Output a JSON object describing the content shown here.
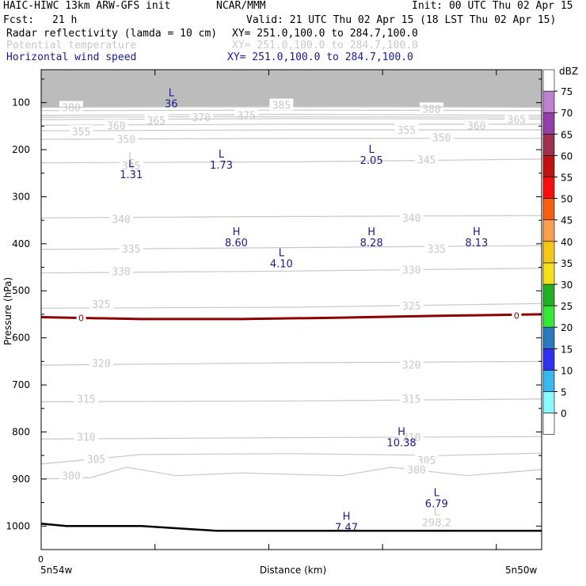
{
  "header": {
    "model": "HAIC-HIWC 13km ARW-GFS init",
    "org": "NCAR/MMM",
    "init": "Init: 00 UTC Thu 02 Apr 15",
    "fcst_label": "Fcst:",
    "fcst_value": "21 h",
    "valid": "Valid: 21 UTC Thu 02 Apr 15 (18 LST Thu 02 Apr 15)",
    "fields": [
      {
        "name": "Radar reflectivity (lamda = 10 cm)",
        "xy": "XY= 251.0,100.0 to 284.7,100.0",
        "color": "#000000"
      },
      {
        "name": "Potential temperature",
        "xy": "XY= 251.0,100.0 to 284.7,100.0",
        "color": "#c8c8c8"
      },
      {
        "name": "Horizontal wind speed",
        "xy": "XY= 251.0,100.0 to 284.7,100.0",
        "color": "#1a1a8c"
      }
    ]
  },
  "chart_data": {
    "type": "cross-section",
    "ylabel": "Pressure (hPa)",
    "xlabel": "Distance (km)",
    "y_ticks": [
      100,
      200,
      300,
      400,
      500,
      600,
      700,
      800,
      900,
      1000
    ],
    "y_range": [
      30,
      1050
    ],
    "y_scale": "linear",
    "x_tick_labels": [
      "0"
    ],
    "x_end_labels": [
      "5n54w",
      "5n50w"
    ],
    "x_range": [
      0,
      100
    ],
    "grid": false,
    "legend_position": "right",
    "colorbar": {
      "unit": "dBZ",
      "levels": [
        0,
        5,
        10,
        15,
        20,
        25,
        30,
        35,
        40,
        45,
        50,
        55,
        60,
        65,
        70,
        75
      ],
      "colors": [
        "#ffffff",
        "#8cf8ff",
        "#38b8f0",
        "#3030f0",
        "#2a7abf",
        "#38e838",
        "#22b022",
        "#f8e018",
        "#f8c818",
        "#f8a050",
        "#f86010",
        "#f81010",
        "#c01010",
        "#a03050",
        "#9040a8",
        "#c080d0",
        "#ffffff"
      ]
    },
    "theta_contours": [
      {
        "value": 380,
        "points": [
          [
            0,
            117
          ],
          [
            50,
            116
          ],
          [
            100,
            117
          ]
        ],
        "labels": [
          [
            6,
            110
          ],
          [
            78,
            113
          ]
        ]
      },
      {
        "value": 385,
        "points": [
          [
            0,
            110
          ],
          [
            50,
            108
          ],
          [
            100,
            110
          ]
        ],
        "labels": [
          [
            48,
            105
          ]
        ]
      },
      {
        "value": 375,
        "points": [
          [
            0,
            127
          ],
          [
            50,
            125
          ],
          [
            100,
            127
          ]
        ],
        "labels": [
          [
            41,
            127
          ]
        ]
      },
      {
        "value": 370,
        "points": [
          [
            0,
            131
          ],
          [
            35,
            130
          ],
          [
            100,
            131
          ]
        ],
        "labels": [
          [
            32,
            131
          ]
        ]
      },
      {
        "value": 365,
        "points": [
          [
            0,
            136
          ],
          [
            50,
            134
          ],
          [
            100,
            135
          ]
        ],
        "labels": [
          [
            23,
            138
          ],
          [
            95,
            135
          ]
        ]
      },
      {
        "value": 360,
        "points": [
          [
            0,
            148
          ],
          [
            50,
            146
          ],
          [
            100,
            146
          ]
        ],
        "labels": [
          [
            15,
            149
          ],
          [
            87,
            149
          ]
        ]
      },
      {
        "value": 355,
        "points": [
          [
            0,
            160
          ],
          [
            50,
            158
          ],
          [
            100,
            158
          ]
        ],
        "labels": [
          [
            8,
            161
          ],
          [
            73,
            158
          ]
        ]
      },
      {
        "value": 350,
        "points": [
          [
            0,
            178
          ],
          [
            50,
            176
          ],
          [
            100,
            176
          ]
        ],
        "labels": [
          [
            17,
            177
          ],
          [
            80,
            174
          ]
        ]
      },
      {
        "value": 345,
        "points": [
          [
            0,
            228
          ],
          [
            50,
            226
          ],
          [
            100,
            220
          ]
        ],
        "labels": [
          [
            18,
            234
          ],
          [
            77,
            221
          ]
        ]
      },
      {
        "value": 340,
        "points": [
          [
            0,
            345
          ],
          [
            50,
            342
          ],
          [
            100,
            340
          ]
        ],
        "labels": [
          [
            16,
            347
          ],
          [
            74,
            345
          ]
        ]
      },
      {
        "value": 335,
        "points": [
          [
            0,
            412
          ],
          [
            50,
            408
          ],
          [
            100,
            404
          ]
        ],
        "labels": [
          [
            18,
            410
          ],
          [
            79,
            410
          ]
        ]
      },
      {
        "value": 330,
        "points": [
          [
            0,
            462
          ],
          [
            50,
            458
          ],
          [
            100,
            452
          ]
        ],
        "labels": [
          [
            16,
            458
          ],
          [
            74,
            455
          ]
        ]
      },
      {
        "value": 325,
        "points": [
          [
            0,
            537
          ],
          [
            50,
            535
          ],
          [
            100,
            527
          ]
        ],
        "labels": [
          [
            12,
            528
          ],
          [
            74,
            532
          ]
        ]
      },
      {
        "value": 320,
        "points": [
          [
            0,
            658
          ],
          [
            50,
            653
          ],
          [
            100,
            650
          ]
        ],
        "labels": [
          [
            12,
            654
          ],
          [
            74,
            657
          ]
        ]
      },
      {
        "value": 315,
        "points": [
          [
            0,
            736
          ],
          [
            50,
            734
          ],
          [
            100,
            730
          ]
        ],
        "labels": [
          [
            9,
            729
          ],
          [
            74,
            729
          ]
        ]
      },
      {
        "value": 310,
        "points": [
          [
            0,
            815
          ],
          [
            50,
            812
          ],
          [
            100,
            810
          ]
        ],
        "labels": [
          [
            9,
            810
          ],
          [
            74,
            811
          ]
        ]
      },
      {
        "value": 305,
        "points": [
          [
            0,
            868
          ],
          [
            20,
            848
          ],
          [
            50,
            846
          ],
          [
            80,
            850
          ],
          [
            100,
            845
          ]
        ],
        "labels": [
          [
            11,
            857
          ],
          [
            77,
            860
          ]
        ]
      },
      {
        "value": 300,
        "points": [
          [
            0,
            900
          ],
          [
            10,
            897
          ],
          [
            17,
            875
          ],
          [
            27,
            893
          ],
          [
            40,
            887
          ],
          [
            60,
            893
          ],
          [
            70,
            875
          ],
          [
            85,
            893
          ],
          [
            100,
            880
          ]
        ],
        "labels": [
          [
            6,
            893
          ],
          [
            75,
            880
          ]
        ]
      }
    ],
    "freezing_line": {
      "label": "0",
      "points": [
        [
          0,
          556
        ],
        [
          20,
          560
        ],
        [
          40,
          560
        ],
        [
          60,
          557
        ],
        [
          80,
          553
        ],
        [
          100,
          550
        ]
      ],
      "labels": [
        [
          8,
          558
        ],
        [
          95,
          553
        ]
      ]
    },
    "terrain": {
      "points": [
        [
          0,
          995
        ],
        [
          5,
          1000
        ],
        [
          20,
          1000
        ],
        [
          35,
          1010
        ],
        [
          70,
          1010
        ],
        [
          100,
          1010
        ]
      ]
    },
    "wind_extrema": [
      {
        "type": "L",
        "value": "36",
        "x": 26,
        "y": 90
      },
      {
        "type": "L",
        "value": "1.31",
        "x": 18,
        "y": 240
      },
      {
        "type": "L",
        "value": "1.73",
        "x": 36,
        "y": 220
      },
      {
        "type": "L",
        "value": "2.05",
        "x": 66,
        "y": 210
      },
      {
        "type": "H",
        "value": "8.60",
        "x": 39,
        "y": 385
      },
      {
        "type": "H",
        "value": "8.28",
        "x": 66,
        "y": 385
      },
      {
        "type": "H",
        "value": "8.13",
        "x": 87,
        "y": 385
      },
      {
        "type": "L",
        "value": "4.10",
        "x": 48,
        "y": 430
      },
      {
        "type": "H",
        "value": "10.38",
        "x": 72,
        "y": 810
      },
      {
        "type": "L",
        "value": "6.79",
        "x": 79,
        "y": 940
      },
      {
        "type": "H",
        "value": "7.47",
        "x": 61,
        "y": 990
      }
    ],
    "theta_extrema": [
      {
        "type": "L",
        "value": "298.2",
        "x": 79,
        "y": 980
      },
      {
        "type": "L",
        "value": "",
        "x": 18,
        "y": 225
      }
    ]
  },
  "colors": {
    "theta": "#c8c8c8",
    "wind": "#1a1a8c",
    "freezing": "#8b0000",
    "terrain": "#000000",
    "top_band": "#bcbcbc"
  }
}
